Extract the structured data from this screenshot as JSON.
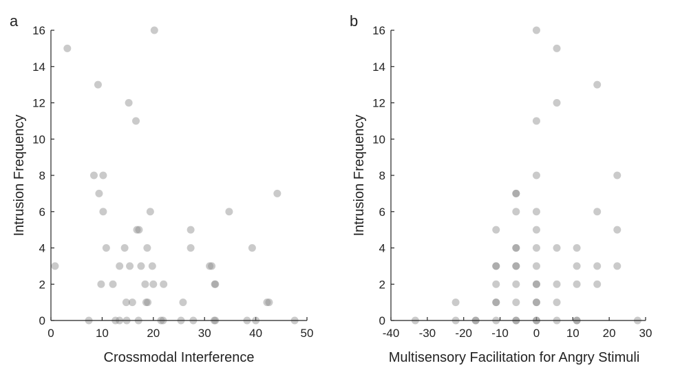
{
  "chart_data": [
    {
      "type": "scatter",
      "panel_label": "a",
      "xlabel": "Crossmodal Interference",
      "ylabel": "Intrusion Frequency",
      "xlim": [
        0,
        50
      ],
      "ylim": [
        0,
        16
      ],
      "xticks": [
        0,
        10,
        20,
        30,
        40,
        50
      ],
      "yticks": [
        0,
        2,
        4,
        6,
        8,
        10,
        12,
        14,
        16
      ],
      "xtick_labels": [
        "0",
        "10",
        "20",
        "30",
        "40",
        "50"
      ],
      "ytick_labels": [
        "0",
        "2",
        "4",
        "6",
        "8",
        "10",
        "12",
        "14",
        "16"
      ],
      "grid": false,
      "points": [
        [
          0.8,
          3
        ],
        [
          3.2,
          15
        ],
        [
          9.2,
          13
        ],
        [
          15.2,
          12
        ],
        [
          16.6,
          11
        ],
        [
          20.2,
          16
        ],
        [
          8.4,
          8
        ],
        [
          10.2,
          8
        ],
        [
          9.4,
          7
        ],
        [
          44.2,
          7
        ],
        [
          10.2,
          6
        ],
        [
          19.4,
          6
        ],
        [
          34.8,
          6
        ],
        [
          16.8,
          5
        ],
        [
          17.2,
          5
        ],
        [
          27.3,
          5
        ],
        [
          10.8,
          4
        ],
        [
          14.4,
          4
        ],
        [
          18.8,
          4
        ],
        [
          27.3,
          4
        ],
        [
          39.3,
          4
        ],
        [
          13.4,
          3
        ],
        [
          15.4,
          3
        ],
        [
          17.6,
          3
        ],
        [
          19.8,
          3
        ],
        [
          31.0,
          3
        ],
        [
          31.4,
          3
        ],
        [
          9.8,
          2
        ],
        [
          12.1,
          2
        ],
        [
          18.4,
          2
        ],
        [
          20.0,
          2
        ],
        [
          22.0,
          2
        ],
        [
          32.0,
          2
        ],
        [
          32.1,
          2
        ],
        [
          14.7,
          1
        ],
        [
          15.9,
          1
        ],
        [
          18.6,
          1
        ],
        [
          18.9,
          1
        ],
        [
          25.8,
          1
        ],
        [
          42.2,
          1
        ],
        [
          42.6,
          1
        ],
        [
          7.4,
          0
        ],
        [
          12.6,
          0
        ],
        [
          13.4,
          0
        ],
        [
          14.8,
          0
        ],
        [
          17.1,
          0
        ],
        [
          21.5,
          0
        ],
        [
          21.9,
          0
        ],
        [
          25.4,
          0
        ],
        [
          27.8,
          0
        ],
        [
          31.9,
          0
        ],
        [
          32.1,
          0
        ],
        [
          38.3,
          0
        ],
        [
          40.0,
          0
        ],
        [
          47.6,
          0
        ]
      ]
    },
    {
      "type": "scatter",
      "panel_label": "b",
      "xlabel": "Multisensory Facilitation for Angry Stimuli",
      "ylabel": "Intrusion Frequency",
      "xlim": [
        -40,
        30
      ],
      "ylim": [
        0,
        16
      ],
      "xticks": [
        -40,
        -30,
        -20,
        -10,
        0,
        10,
        20,
        30
      ],
      "yticks": [
        0,
        2,
        4,
        6,
        8,
        10,
        12,
        14,
        16
      ],
      "xtick_labels": [
        "-40",
        "-30",
        "-20",
        "-10",
        "0",
        "10",
        "20",
        "30"
      ],
      "ytick_labels": [
        "0",
        "2",
        "4",
        "6",
        "8",
        "10",
        "12",
        "14",
        "16"
      ],
      "grid": false,
      "points": [
        [
          0,
          16
        ],
        [
          5.6,
          15
        ],
        [
          16.7,
          13
        ],
        [
          5.6,
          12
        ],
        [
          0,
          11
        ],
        [
          0,
          8
        ],
        [
          22.2,
          8
        ],
        [
          -5.6,
          7
        ],
        [
          -5.6,
          7
        ],
        [
          -5.6,
          6
        ],
        [
          0,
          6
        ],
        [
          16.7,
          6
        ],
        [
          -11.1,
          5
        ],
        [
          0,
          5
        ],
        [
          22.2,
          5
        ],
        [
          -5.6,
          4
        ],
        [
          -5.6,
          4
        ],
        [
          0,
          4
        ],
        [
          5.6,
          4
        ],
        [
          11.1,
          4
        ],
        [
          -11.1,
          3
        ],
        [
          -11.1,
          3
        ],
        [
          -5.6,
          3
        ],
        [
          -5.6,
          3
        ],
        [
          0,
          3
        ],
        [
          11.1,
          3
        ],
        [
          16.7,
          3
        ],
        [
          22.2,
          3
        ],
        [
          -11.1,
          2
        ],
        [
          -5.6,
          2
        ],
        [
          0,
          2
        ],
        [
          0,
          2
        ],
        [
          5.6,
          2
        ],
        [
          11.1,
          2
        ],
        [
          16.7,
          2
        ],
        [
          -22.2,
          1
        ],
        [
          -11.1,
          1
        ],
        [
          -11.1,
          1
        ],
        [
          -5.6,
          1
        ],
        [
          0,
          1
        ],
        [
          0,
          1
        ],
        [
          5.6,
          1
        ],
        [
          -33.3,
          0
        ],
        [
          -22.2,
          0
        ],
        [
          -16.7,
          0
        ],
        [
          -16.7,
          0
        ],
        [
          -11.1,
          0
        ],
        [
          -5.6,
          0
        ],
        [
          -5.6,
          0
        ],
        [
          0,
          0
        ],
        [
          0,
          0
        ],
        [
          5.6,
          0
        ],
        [
          11.1,
          0
        ],
        [
          11.1,
          0
        ],
        [
          27.8,
          0
        ]
      ]
    }
  ]
}
